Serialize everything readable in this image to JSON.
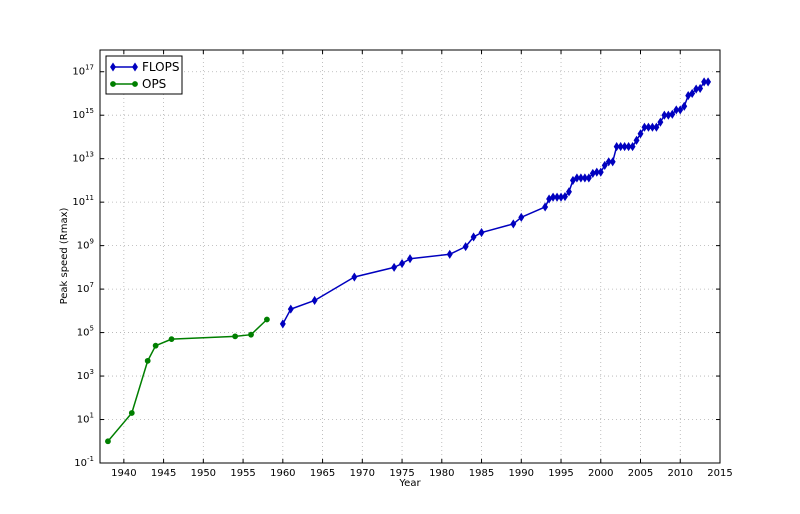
{
  "chart_data": {
    "type": "line",
    "title": "",
    "xlabel": "Year",
    "ylabel": "Peak speed (Rmax)",
    "xlim": [
      1937,
      2015
    ],
    "ylim": [
      0.1,
      1e+18
    ],
    "yscale": "log",
    "grid": true,
    "legend_position": "top-left",
    "x_ticks": [
      1940,
      1945,
      1950,
      1955,
      1960,
      1965,
      1970,
      1975,
      1980,
      1985,
      1990,
      1995,
      2000,
      2005,
      2010,
      2015
    ],
    "y_tick_exponents": [
      -1,
      1,
      3,
      5,
      7,
      9,
      11,
      13,
      15,
      17
    ],
    "series": [
      {
        "name": "FLOPS",
        "color": "#0000bf",
        "marker": "diamond",
        "x": [
          1960,
          1961,
          1964,
          1969,
          1974,
          1975,
          1976,
          1981,
          1983,
          1984,
          1985,
          1989,
          1990,
          1993,
          1993.5,
          1994,
          1994.5,
          1995,
          1995.5,
          1996,
          1996.5,
          1997,
          1997.5,
          1998,
          1998.5,
          1999,
          1999.5,
          2000,
          2000.5,
          2001,
          2001.5,
          2002,
          2002.5,
          2003,
          2003.5,
          2004,
          2004.5,
          2005,
          2005.5,
          2006,
          2006.5,
          2007,
          2007.5,
          2008,
          2008.5,
          2009,
          2009.5,
          2010,
          2010.5,
          2011,
          2011.5,
          2012,
          2012.5,
          2013,
          2013.5
        ],
        "y": [
          250000.0,
          1200000.0,
          3000000.0,
          36000000.0,
          100000000.0,
          150000000.0,
          250000000.0,
          400000000.0,
          900000000.0,
          2500000000.0,
          4000000000.0,
          10000000000.0,
          20000000000.0,
          60000000000.0,
          140000000000.0,
          170000000000.0,
          170000000000.0,
          170000000000.0,
          180000000000.0,
          300000000000.0,
          1000000000000.0,
          1300000000000.0,
          1300000000000.0,
          1300000000000.0,
          1300000000000.0,
          2100000000000.0,
          2400000000000.0,
          2400000000000.0,
          4900000000000.0,
          7200000000000.0,
          7200000000000.0,
          36000000000000.0,
          36000000000000.0,
          36000000000000.0,
          36000000000000.0,
          36000000000000.0,
          70000000000000.0,
          140000000000000.0,
          280000000000000.0,
          280000000000000.0,
          280000000000000.0,
          280000000000000.0,
          480000000000000.0,
          1000000000000000.0,
          1000000000000000.0,
          1100000000000000.0,
          1760000000000000.0,
          1760000000000000.0,
          2570000000000000.0,
          8000000000000000.0,
          1e+16,
          1.6e+16,
          1.7e+16,
          3.4e+16,
          3.4e+16
        ]
      },
      {
        "name": "OPS",
        "color": "#007f00",
        "marker": "circle",
        "x": [
          1938,
          1941,
          1943,
          1944,
          1946,
          1954,
          1956,
          1958
        ],
        "y": [
          1,
          20,
          5000.0,
          25000.0,
          50000.0,
          67000.0,
          80000.0,
          400000.0
        ]
      }
    ]
  }
}
